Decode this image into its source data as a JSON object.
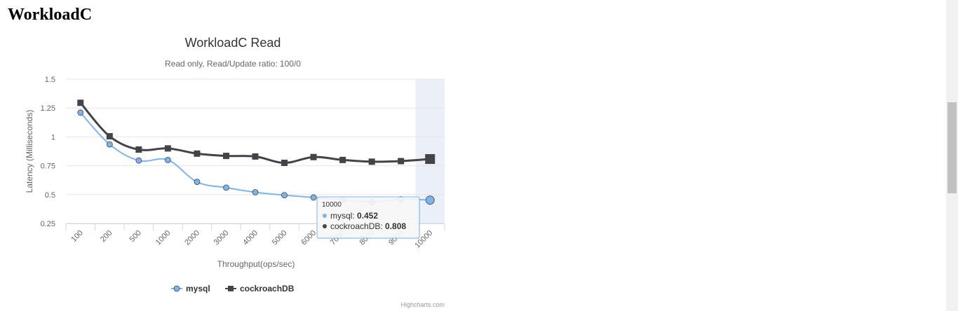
{
  "page": {
    "heading": "WorkloadC"
  },
  "chart_data": {
    "type": "line",
    "title": "WorkloadC Read",
    "subtitle": "Read only, Read/Update ratio: 100/0",
    "xlabel": "Throughput(ops/sec)",
    "ylabel": "Latency (Milliseconds)",
    "categories": [
      "100",
      "200",
      "500",
      "1000",
      "2000",
      "3000",
      "4000",
      "5000",
      "6000",
      "7000",
      "8000",
      "9000",
      "10000"
    ],
    "ylim": [
      0.25,
      1.5
    ],
    "yticks": [
      "0.25",
      "0.5",
      "0.75",
      "1",
      "1.25",
      "1.5"
    ],
    "grid": true,
    "legend_position": "bottom",
    "series": [
      {
        "name": "mysql",
        "color": "#7cb5ec",
        "marker": "circle",
        "values": [
          1.21,
          0.935,
          0.795,
          0.8,
          0.61,
          0.56,
          0.52,
          0.495,
          0.475,
          0.455,
          0.435,
          0.46,
          0.452
        ]
      },
      {
        "name": "cockroachDB",
        "color": "#434348",
        "marker": "square",
        "values": [
          1.295,
          1.005,
          0.89,
          0.9,
          0.855,
          0.835,
          0.83,
          0.775,
          0.825,
          0.8,
          0.785,
          0.79,
          0.808
        ]
      }
    ],
    "highlight_category": "10000",
    "tooltip": {
      "header": "10000",
      "rows": [
        {
          "label": "mysql: ",
          "value": "0.452",
          "color": "#7cb5ec"
        },
        {
          "label": "cockroachDB: ",
          "value": "0.808",
          "color": "#434348"
        }
      ]
    },
    "credits": "Highcharts.com"
  }
}
